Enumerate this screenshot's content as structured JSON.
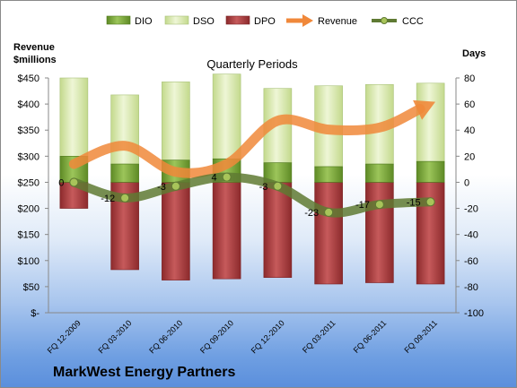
{
  "chart_data": {
    "type": "bar",
    "title": "Quarterly Periods",
    "company": "MarkWest Energy Partners",
    "left_axis_title_line1": "Revenue",
    "left_axis_title_line2": "$millions",
    "right_axis_title": "Days",
    "categories": [
      "FQ 12-2009",
      "FQ 03-2010",
      "FQ 06-2010",
      "FQ 09-2010",
      "FQ 12-2010",
      "FQ 03-2011",
      "FQ 06-2011",
      "FQ 09-2011"
    ],
    "left_ticks": [
      "$450",
      "$400",
      "$350",
      "$300",
      "$250",
      "$200",
      "$150",
      "$100",
      "$50",
      "$-"
    ],
    "right_ticks": [
      "80",
      "60",
      "40",
      "20",
      "0",
      "-20",
      "-40",
      "-60",
      "-80",
      "-100"
    ],
    "ylim_left": [
      0,
      450
    ],
    "ylim_right": [
      -100,
      80
    ],
    "legend_position": "top",
    "series": [
      {
        "name": "DIO",
        "type": "bar-stacked",
        "axis": "right",
        "color": "#77a23a",
        "values": [
          20,
          14,
          17,
          18,
          15,
          12,
          14,
          16
        ]
      },
      {
        "name": "DSO",
        "type": "bar-stacked",
        "axis": "right",
        "color": "#d4e6a8",
        "values": [
          60,
          53,
          60,
          65,
          57,
          62,
          61,
          60
        ]
      },
      {
        "name": "DPO",
        "type": "bar-stacked-negative",
        "axis": "right",
        "color": "#a53a3b",
        "values": [
          -20,
          -67,
          -75,
          -74,
          -73,
          -78,
          -77,
          -78
        ]
      },
      {
        "name": "Revenue",
        "type": "line-arrow",
        "axis": "left",
        "color": "#f0883a",
        "values": [
          285,
          320,
          270,
          285,
          368,
          351,
          355,
          400
        ]
      },
      {
        "name": "CCC",
        "type": "line",
        "axis": "right",
        "color": "#5f7a33",
        "values": [
          0,
          -12,
          -3,
          4,
          -3,
          -23,
          -17,
          -15
        ],
        "labels": [
          "0",
          "-12",
          "-3",
          "4",
          "-3",
          "-23",
          "-17",
          "-15"
        ]
      }
    ],
    "grid": false
  }
}
